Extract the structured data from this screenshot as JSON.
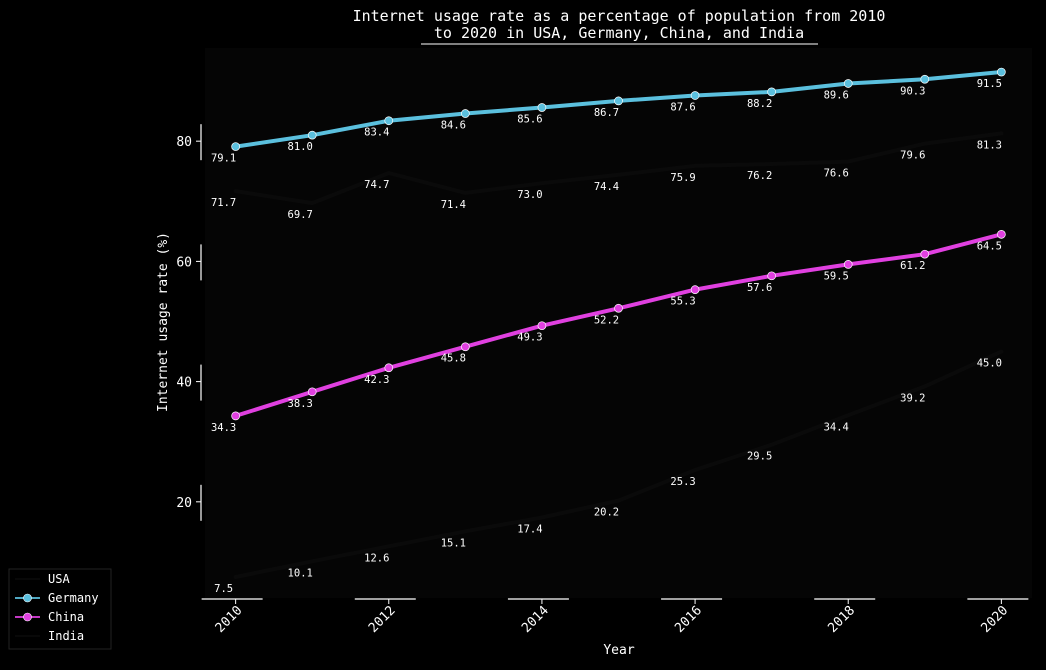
{
  "chart_data": {
    "type": "line",
    "title_lines": [
      "Internet usage rate as a percentage of population from 2010",
      "to 2020 in USA, Germany, China, and India"
    ],
    "xlabel": "Year",
    "ylabel": "Internet usage rate (%)",
    "x": [
      2010,
      2011,
      2012,
      2013,
      2014,
      2015,
      2016,
      2017,
      2018,
      2019,
      2020
    ],
    "xticks": [
      "2010",
      "2012",
      "2014",
      "2016",
      "2018",
      "2020"
    ],
    "yticks": [
      "20",
      "40",
      "60",
      "80"
    ],
    "xlim": [
      2009.6,
      2020.4
    ],
    "ylim": [
      4.0,
      95.5
    ],
    "grid": false,
    "legend_position": "lower-left",
    "series": [
      {
        "name": "USA",
        "color": "#0a0a0a",
        "marker": "none",
        "values": [
          71.7,
          69.7,
          74.7,
          71.4,
          73.0,
          74.4,
          75.9,
          76.2,
          76.6,
          79.6,
          81.3
        ],
        "labels": [
          "71.7",
          "69.7",
          "74.7",
          "71.4",
          "73.0",
          "74.4",
          "75.9",
          "76.2",
          "76.6",
          "79.6",
          "81.3"
        ]
      },
      {
        "name": "Germany",
        "color": "#5bc0de",
        "marker": "circle",
        "values": [
          79.1,
          81.0,
          83.4,
          84.6,
          85.6,
          86.7,
          87.6,
          88.2,
          89.6,
          90.3,
          91.5
        ],
        "labels": [
          "79.1",
          "81.0",
          "83.4",
          "84.6",
          "85.6",
          "86.7",
          "87.6",
          "88.2",
          "89.6",
          "90.3",
          "91.5"
        ]
      },
      {
        "name": "China",
        "color": "#e040e0",
        "marker": "circle",
        "values": [
          34.3,
          38.3,
          42.3,
          45.8,
          49.3,
          52.2,
          55.3,
          57.6,
          59.5,
          61.2,
          64.5
        ],
        "labels": [
          "34.3",
          "38.3",
          "42.3",
          "45.8",
          "49.3",
          "52.2",
          "55.3",
          "57.6",
          "59.5",
          "61.2",
          "64.5"
        ]
      },
      {
        "name": "India",
        "color": "#0a0a0a",
        "marker": "none",
        "values": [
          7.5,
          10.1,
          12.6,
          15.1,
          17.4,
          20.2,
          25.3,
          29.5,
          34.4,
          39.2,
          45.0
        ],
        "labels": [
          "7.5",
          "10.1",
          "12.6",
          "15.1",
          "17.4",
          "20.2",
          "25.3",
          "29.5",
          "34.4",
          "39.2",
          "45.0"
        ]
      }
    ]
  }
}
